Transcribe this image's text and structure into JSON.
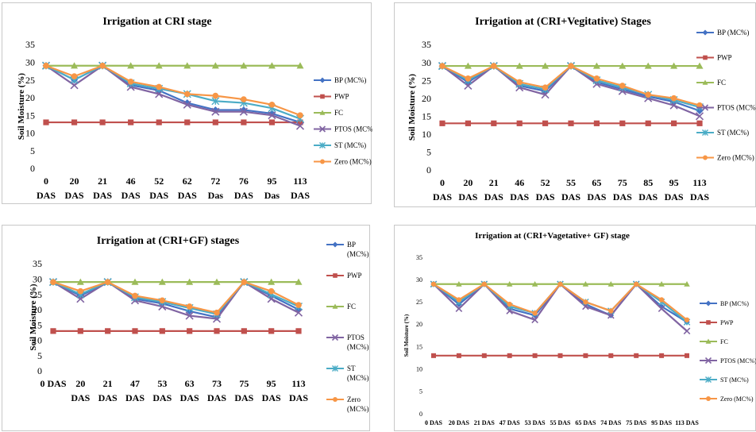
{
  "colors": {
    "BP (MC%)": "#4472C4",
    "PWP": "#C0504D",
    "FC": "#9BBB59",
    "PTOS (MC%)": "#8064A2",
    "ST (MC%)": "#4BACC6",
    "Zero (MC%)": "#F79646"
  },
  "chart_data": [
    {
      "type": "line",
      "title": "Irrigation at CRI stage",
      "ylabel": "Soil Moisture (%)",
      "xlabel": "",
      "ylim": [
        0,
        35
      ],
      "yticks": [
        0,
        5,
        10,
        15,
        20,
        25,
        30,
        35
      ],
      "grid": false,
      "legend": "right",
      "categories": [
        "0 DAS",
        "20 DAS",
        "21 DAS",
        "46 DAS",
        "52 DAS",
        "62 DAS",
        "72 Das",
        "76 DAS",
        "95 Das",
        "113 DAS"
      ],
      "series": [
        {
          "name": "BP (MC%)",
          "marker": "diamond",
          "values": [
            29,
            25,
            29,
            23.5,
            22,
            18.5,
            16.5,
            16.5,
            15.5,
            13
          ]
        },
        {
          "name": "PWP",
          "marker": "square",
          "values": [
            13,
            13,
            13,
            13,
            13,
            13,
            13,
            13,
            13,
            13
          ]
        },
        {
          "name": "FC",
          "marker": "triangle",
          "values": [
            29,
            29,
            29,
            29,
            29,
            29,
            29,
            29,
            29,
            29
          ]
        },
        {
          "name": "PTOS (MC%)",
          "marker": "x",
          "values": [
            29,
            23.5,
            29,
            23,
            21,
            18,
            16,
            16,
            15,
            12
          ]
        },
        {
          "name": "ST (MC%)",
          "marker": "star",
          "values": [
            29,
            25,
            29,
            24,
            22.5,
            21,
            19,
            18.5,
            17,
            14
          ]
        },
        {
          "name": "Zero (MC%)",
          "marker": "circle",
          "values": [
            29,
            26,
            29,
            24.5,
            23,
            21,
            20.5,
            19.5,
            18,
            15
          ]
        }
      ]
    },
    {
      "type": "line",
      "title": "Irrigation at (CRI+Vegitative) Stages",
      "ylabel": "Soil Moisture (%)",
      "xlabel": "",
      "ylim": [
        0,
        35
      ],
      "yticks": [
        0,
        5,
        10,
        15,
        20,
        25,
        30,
        35
      ],
      "grid": false,
      "legend": "right",
      "categories": [
        "0 DAS",
        "20 DAS",
        "21 DAS",
        "46 DAS",
        "52 DAS",
        "55 DAS",
        "65 DAS",
        "75 DAS",
        "85 DAS",
        "95 DAS",
        "113 DAS"
      ],
      "series": [
        {
          "name": "BP (MC%)",
          "marker": "diamond",
          "values": [
            29,
            24.5,
            29,
            23.5,
            22,
            29,
            24.5,
            22.5,
            20.5,
            19,
            16.5
          ]
        },
        {
          "name": "PWP",
          "marker": "square",
          "values": [
            13,
            13,
            13,
            13,
            13,
            13,
            13,
            13,
            13,
            13,
            13
          ]
        },
        {
          "name": "FC",
          "marker": "triangle",
          "values": [
            29,
            29,
            29,
            29,
            29,
            29,
            29,
            29,
            29,
            29,
            29
          ]
        },
        {
          "name": "PTOS (MC%)",
          "marker": "x",
          "values": [
            29,
            23.5,
            29,
            23,
            21,
            29,
            24,
            22,
            20,
            18,
            15
          ]
        },
        {
          "name": "ST (MC%)",
          "marker": "star",
          "values": [
            29,
            25,
            29,
            24,
            22.5,
            29,
            25,
            23,
            21,
            19.5,
            17.5
          ]
        },
        {
          "name": "Zero (MC%)",
          "marker": "circle",
          "values": [
            29,
            25.5,
            29,
            24.5,
            23,
            29,
            25.5,
            23.5,
            21,
            20,
            18
          ]
        }
      ]
    },
    {
      "type": "line",
      "title": "Irrigation at (CRI+GF) stages",
      "ylabel": "Soil Moisture (%)",
      "xlabel": "",
      "ylim": [
        0,
        35
      ],
      "yticks": [
        0,
        5,
        10,
        15,
        20,
        25,
        30,
        35
      ],
      "grid": false,
      "legend": "right",
      "categories": [
        "0 DAS",
        "20 DAS",
        "21 DAS",
        "47 DAS",
        "53 DAS",
        "63 DAS",
        "73 DAS",
        "75 DAS",
        "95 DAS",
        "113 DAS"
      ],
      "series": [
        {
          "name": "BP (MC%)",
          "marker": "diamond",
          "values": [
            29,
            24.5,
            29,
            23.5,
            22,
            19.5,
            17.5,
            29,
            24.5,
            20
          ]
        },
        {
          "name": "PWP",
          "marker": "square",
          "values": [
            13,
            13,
            13,
            13,
            13,
            13,
            13,
            13,
            13,
            13
          ]
        },
        {
          "name": "FC",
          "marker": "triangle",
          "values": [
            29,
            29,
            29,
            29,
            29,
            29,
            29,
            29,
            29,
            29
          ]
        },
        {
          "name": "PTOS (MC%)",
          "marker": "x",
          "values": [
            29,
            23.5,
            29,
            23,
            21,
            18,
            17,
            29,
            23.5,
            19
          ]
        },
        {
          "name": "ST (MC%)",
          "marker": "star",
          "values": [
            29,
            25,
            29,
            24,
            22.5,
            20.5,
            18.5,
            29,
            25,
            21
          ]
        },
        {
          "name": "Zero (MC%)",
          "marker": "circle",
          "values": [
            29,
            26,
            29,
            24.5,
            23,
            21,
            19,
            29,
            26,
            21.5
          ]
        }
      ]
    },
    {
      "type": "line",
      "title": "Irrigation at (CRI+Vagetative+ GF) stage",
      "ylabel": "Soil Moisture (%)",
      "xlabel": "",
      "ylim": [
        0,
        35
      ],
      "yticks": [
        0,
        5,
        10,
        15,
        20,
        25,
        30,
        35
      ],
      "grid": false,
      "legend": "right",
      "categories": [
        "0 DAS",
        "20 DAS",
        "21 DAS",
        "47 DAS",
        "53 DAS",
        "55 DAS",
        "65 DAS",
        "74 DAS",
        "75 DAS",
        "95 DAS",
        "113 DAS"
      ],
      "series": [
        {
          "name": "BP (MC%)",
          "marker": "diamond",
          "values": [
            29,
            24.5,
            29,
            23.5,
            22,
            29,
            24.5,
            22,
            29,
            24,
            20.5
          ]
        },
        {
          "name": "PWP",
          "marker": "square",
          "values": [
            13,
            13,
            13,
            13,
            13,
            13,
            13,
            13,
            13,
            13,
            13
          ]
        },
        {
          "name": "FC",
          "marker": "triangle",
          "values": [
            29,
            29,
            29,
            29,
            29,
            29,
            29,
            29,
            29,
            29,
            29
          ]
        },
        {
          "name": "PTOS (MC%)",
          "marker": "x",
          "values": [
            29,
            23.5,
            29,
            23,
            21,
            29,
            24,
            22,
            29,
            23.5,
            18.5
          ]
        },
        {
          "name": "ST (MC%)",
          "marker": "star",
          "values": [
            29,
            25,
            29,
            24,
            22.5,
            29,
            25,
            23,
            29,
            25,
            20.5
          ]
        },
        {
          "name": "Zero (MC%)",
          "marker": "circle",
          "values": [
            29,
            25.5,
            29,
            24.5,
            22.5,
            29,
            25,
            23,
            29,
            25.5,
            21
          ]
        }
      ]
    }
  ]
}
